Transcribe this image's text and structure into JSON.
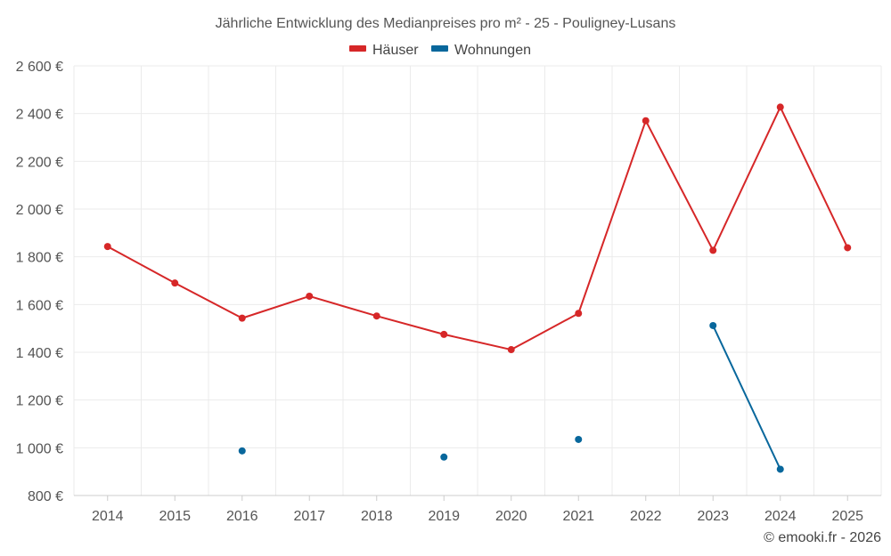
{
  "chart_data": {
    "type": "line",
    "title": "Jährliche Entwicklung des Medianpreises pro m² - 25 - Pouligney-Lusans",
    "categories": [
      "2014",
      "2015",
      "2016",
      "2017",
      "2018",
      "2019",
      "2020",
      "2021",
      "2022",
      "2023",
      "2024",
      "2025"
    ],
    "ylim": [
      800,
      2600
    ],
    "yticks": [
      800,
      1000,
      1200,
      1400,
      1600,
      1800,
      2000,
      2200,
      2400,
      2600
    ],
    "ytick_labels": [
      "800 €",
      "1 000 €",
      "1 200 €",
      "1 400 €",
      "1 600 €",
      "1 800 €",
      "2 000 €",
      "2 200 €",
      "2 400 €",
      "2 600 €"
    ],
    "legend_position": "top-center",
    "grid": true,
    "series": [
      {
        "name": "Häuser",
        "color": "#d62728",
        "values": [
          1843,
          1690,
          1543,
          1635,
          1552,
          1475,
          1411,
          1563,
          2370,
          1827,
          2427,
          1838
        ]
      },
      {
        "name": "Wohnungen",
        "color": "#08679c",
        "values": [
          null,
          null,
          987,
          null,
          null,
          961,
          null,
          1035,
          null,
          1512,
          910,
          null
        ]
      }
    ],
    "credit": "© emooki.fr - 2026"
  }
}
